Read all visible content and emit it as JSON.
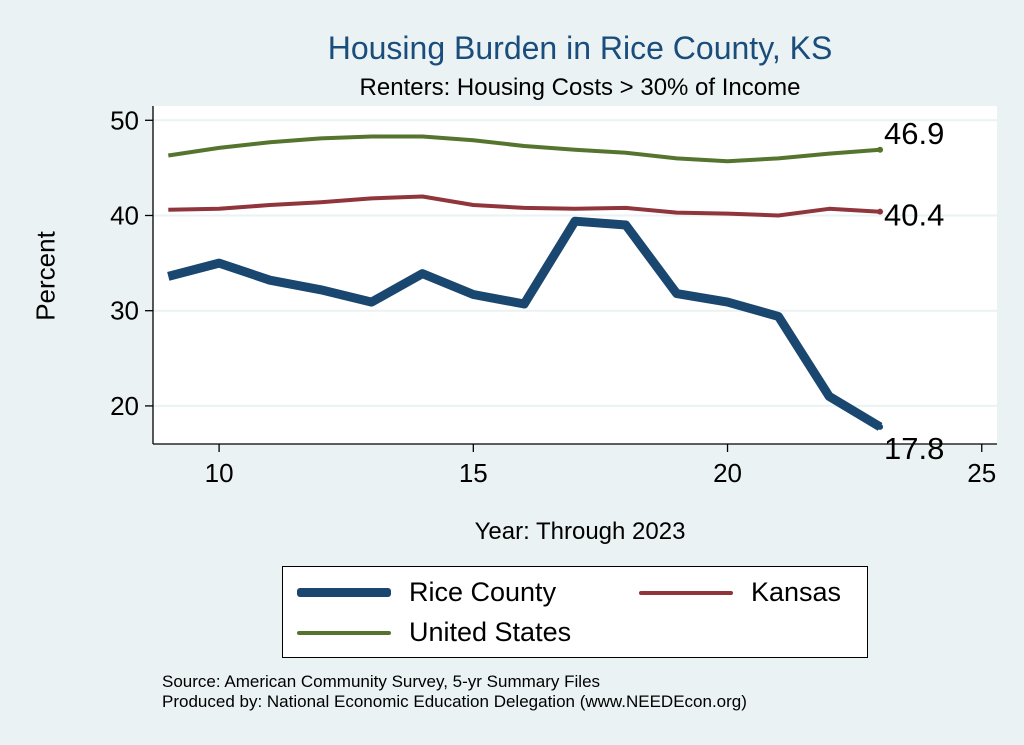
{
  "chart_data": {
    "type": "line",
    "title": "Housing Burden in Rice County, KS",
    "subtitle": "Renters: Housing Costs > 30% of Income",
    "xlabel": "Year: Through 2023",
    "ylabel": "Percent",
    "xlim": [
      8.7,
      25.3
    ],
    "ylim": [
      16,
      51.5
    ],
    "xticks": [
      10,
      15,
      20,
      25
    ],
    "yticks": [
      20,
      30,
      40,
      50
    ],
    "grid": true,
    "legend_position": "bottom",
    "x": [
      9,
      10,
      11,
      12,
      13,
      14,
      15,
      16,
      17,
      18,
      19,
      20,
      21,
      22,
      23
    ],
    "series": [
      {
        "name": "Rice County",
        "color": "#1a476f",
        "width": 9,
        "values": [
          33.6,
          35.0,
          33.2,
          32.2,
          30.9,
          33.9,
          31.7,
          30.7,
          39.4,
          39.0,
          31.8,
          30.9,
          29.4,
          21.0,
          17.8
        ],
        "end_label": "17.8"
      },
      {
        "name": "Kansas",
        "color": "#90353b",
        "width": 4,
        "values": [
          40.6,
          40.7,
          41.1,
          41.4,
          41.8,
          42.0,
          41.1,
          40.8,
          40.7,
          40.8,
          40.3,
          40.2,
          40.0,
          40.7,
          40.4
        ],
        "end_label": "40.4"
      },
      {
        "name": "United States",
        "color": "#55752f",
        "width": 4,
        "values": [
          46.3,
          47.1,
          47.7,
          48.1,
          48.3,
          48.3,
          47.9,
          47.3,
          46.9,
          46.6,
          46.0,
          45.7,
          46.0,
          46.5,
          46.9
        ],
        "end_label": "46.9"
      }
    ]
  },
  "legend": {
    "rice": "Rice County",
    "kansas": "Kansas",
    "us": "United States"
  },
  "footer": {
    "source": "Source: American Community Survey, 5-yr Summary Files",
    "produced": "Produced by: National Economic Education Delegation (www.NEEDEcon.org)"
  },
  "colors": {
    "background": "#eaf2f3",
    "plot_background": "#ffffff",
    "grid": "#eaf2f3",
    "title": "#1a4c7c"
  }
}
